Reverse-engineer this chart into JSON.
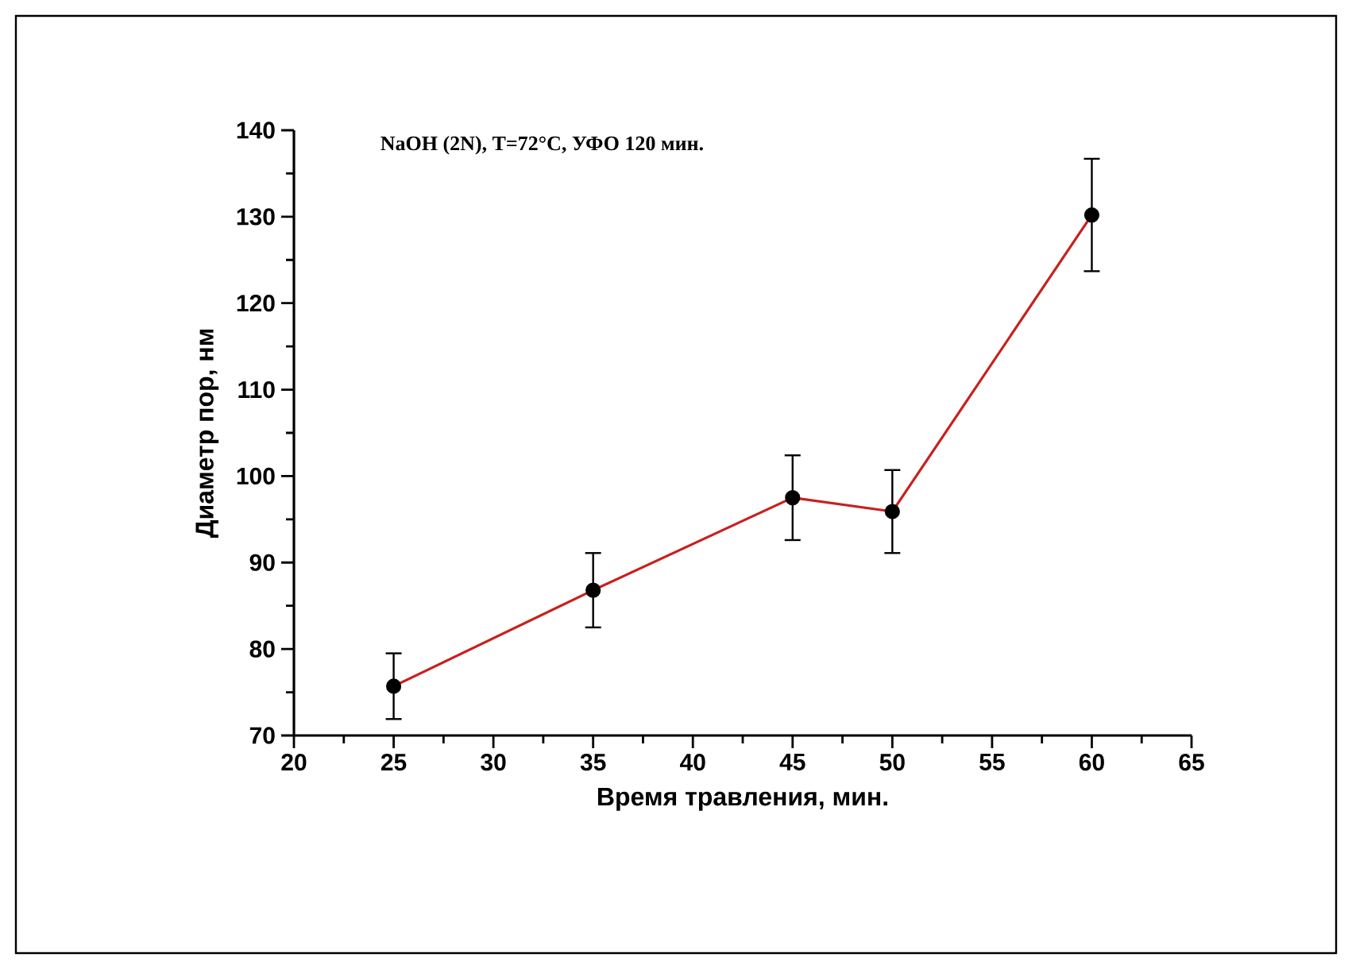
{
  "chart_data": {
    "type": "line",
    "xlabel": "Время травления, мин.",
    "ylabel": "Диаметр пор, нм",
    "annotations": [
      "NaOH (2N), T=72°C, УФО 120 мин."
    ],
    "x": [
      25,
      35,
      45,
      50,
      60
    ],
    "series": [
      {
        "color": "#c8201e",
        "values": [
          75.7,
          86.8,
          97.5,
          95.9,
          130.2
        ],
        "errors": [
          3.8,
          4.3,
          4.9,
          4.8,
          6.5
        ]
      }
    ],
    "xlim": [
      20,
      65
    ],
    "xticks": [
      20,
      25,
      30,
      35,
      40,
      45,
      50,
      55,
      60,
      65
    ],
    "ylim": [
      70,
      140
    ],
    "yticks": [
      70,
      80,
      90,
      100,
      110,
      120,
      130,
      140
    ],
    "marker": "circle",
    "line_style": "solid"
  }
}
